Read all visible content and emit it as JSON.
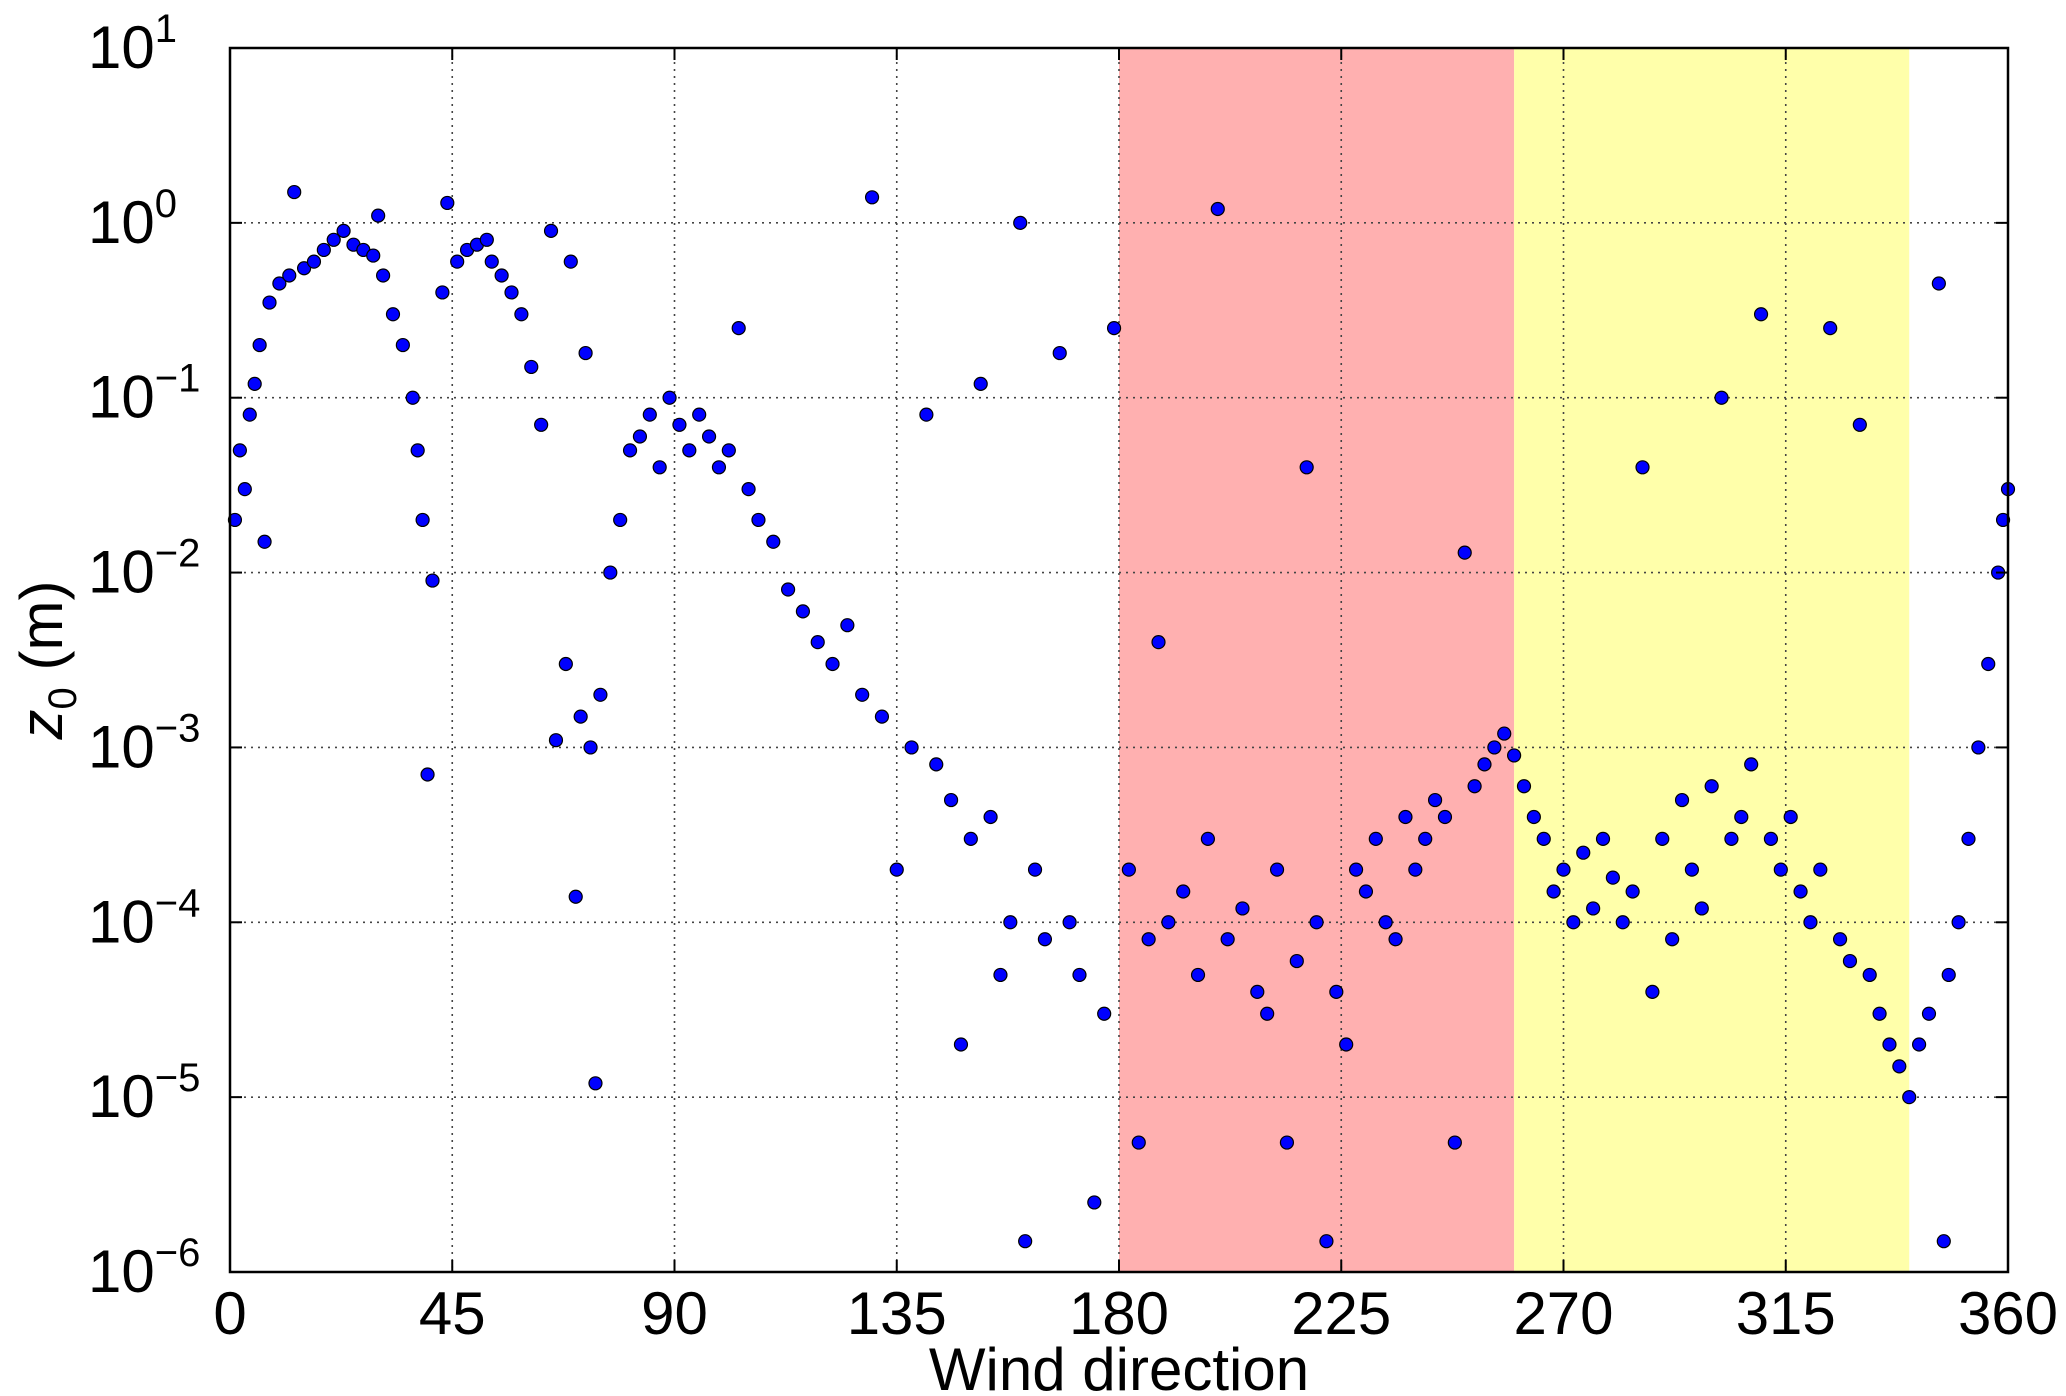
{
  "chart_data": {
    "type": "scatter",
    "xlabel": "Wind direction",
    "ylabel_main": "z",
    "ylabel_sub": "0",
    "ylabel_unit": " (m)",
    "xlim": [
      0,
      360
    ],
    "ylim": [
      1e-06,
      10
    ],
    "yscale": "log",
    "grid": true,
    "x_ticks": [
      "0",
      "45",
      "90",
      "135",
      "180",
      "225",
      "270",
      "315",
      "360"
    ],
    "x_tick_values": [
      0,
      45,
      90,
      135,
      180,
      225,
      270,
      315,
      360
    ],
    "y_ticks": [
      {
        "base": "10",
        "exp": "1",
        "value": 10
      },
      {
        "base": "10",
        "exp": "0",
        "value": 1
      },
      {
        "base": "10",
        "exp": "−1",
        "value": 0.1
      },
      {
        "base": "10",
        "exp": "−2",
        "value": 0.01
      },
      {
        "base": "10",
        "exp": "−3",
        "value": 0.001
      },
      {
        "base": "10",
        "exp": "−4",
        "value": 0.0001
      },
      {
        "base": "10",
        "exp": "−5",
        "value": 1e-05
      },
      {
        "base": "10",
        "exp": "−6",
        "value": 1e-06
      }
    ],
    "shaded_regions": [
      {
        "x_start": 180,
        "x_end": 260,
        "color": "#ffb0b0"
      },
      {
        "x_start": 260,
        "x_end": 340,
        "color": "#ffffaa"
      }
    ],
    "marker_color": "#0000ff",
    "series": [
      {
        "points": [
          [
            1,
            0.02
          ],
          [
            2,
            0.05
          ],
          [
            3,
            0.03
          ],
          [
            4,
            0.08
          ],
          [
            5,
            0.12
          ],
          [
            6,
            0.2
          ],
          [
            7,
            0.015
          ],
          [
            8,
            0.35
          ],
          [
            10,
            0.45
          ],
          [
            12,
            0.5
          ],
          [
            13,
            1.5
          ],
          [
            15,
            0.55
          ],
          [
            17,
            0.6
          ],
          [
            19,
            0.7
          ],
          [
            21,
            0.8
          ],
          [
            23,
            0.9
          ],
          [
            25,
            0.75
          ],
          [
            27,
            0.7
          ],
          [
            29,
            0.65
          ],
          [
            30,
            1.1
          ],
          [
            31,
            0.5
          ],
          [
            33,
            0.3
          ],
          [
            35,
            0.2
          ],
          [
            37,
            0.1
          ],
          [
            38,
            0.05
          ],
          [
            39,
            0.02
          ],
          [
            40,
            0.0007
          ],
          [
            41,
            0.009
          ],
          [
            43,
            0.4
          ],
          [
            44,
            1.3
          ],
          [
            46,
            0.6
          ],
          [
            48,
            0.7
          ],
          [
            50,
            0.75
          ],
          [
            52,
            0.8
          ],
          [
            53,
            0.6
          ],
          [
            55,
            0.5
          ],
          [
            57,
            0.4
          ],
          [
            59,
            0.3
          ],
          [
            61,
            0.15
          ],
          [
            63,
            0.07
          ],
          [
            65,
            0.9
          ],
          [
            66,
            0.0011
          ],
          [
            68,
            0.003
          ],
          [
            69,
            0.6
          ],
          [
            70,
            0.00014
          ],
          [
            71,
            0.0015
          ],
          [
            72,
            0.18
          ],
          [
            73,
            0.001
          ],
          [
            74,
            1.2e-05
          ],
          [
            75,
            0.002
          ],
          [
            77,
            0.01
          ],
          [
            79,
            0.02
          ],
          [
            81,
            0.05
          ],
          [
            83,
            0.06
          ],
          [
            85,
            0.08
          ],
          [
            87,
            0.04
          ],
          [
            89,
            0.1
          ],
          [
            91,
            0.07
          ],
          [
            93,
            0.05
          ],
          [
            95,
            0.08
          ],
          [
            97,
            0.06
          ],
          [
            99,
            0.04
          ],
          [
            101,
            0.05
          ],
          [
            103,
            0.25
          ],
          [
            105,
            0.03
          ],
          [
            107,
            0.02
          ],
          [
            110,
            0.015
          ],
          [
            113,
            0.008
          ],
          [
            116,
            0.006
          ],
          [
            119,
            0.004
          ],
          [
            122,
            0.003
          ],
          [
            125,
            0.005
          ],
          [
            128,
            0.002
          ],
          [
            130,
            1.4
          ],
          [
            132,
            0.0015
          ],
          [
            135,
            0.0002
          ],
          [
            138,
            0.001
          ],
          [
            141,
            0.08
          ],
          [
            143,
            0.0008
          ],
          [
            146,
            0.0005
          ],
          [
            148,
            2e-05
          ],
          [
            150,
            0.0003
          ],
          [
            152,
            0.12
          ],
          [
            154,
            0.0004
          ],
          [
            156,
            5e-05
          ],
          [
            158,
            0.0001
          ],
          [
            160,
            1.0
          ],
          [
            161,
            1.5e-06
          ],
          [
            163,
            0.0002
          ],
          [
            165,
            8e-05
          ],
          [
            168,
            0.18
          ],
          [
            170,
            0.0001
          ],
          [
            172,
            5e-05
          ],
          [
            175,
            2.5e-06
          ],
          [
            177,
            3e-05
          ],
          [
            179,
            0.25
          ],
          [
            182,
            0.0002
          ],
          [
            184,
            5.5e-06
          ],
          [
            186,
            8e-05
          ],
          [
            188,
            0.004
          ],
          [
            190,
            0.0001
          ],
          [
            193,
            0.00015
          ],
          [
            196,
            5e-05
          ],
          [
            198,
            0.0003
          ],
          [
            200,
            1.2
          ],
          [
            202,
            8e-05
          ],
          [
            205,
            0.00012
          ],
          [
            208,
            4e-05
          ],
          [
            210,
            3e-05
          ],
          [
            212,
            0.0002
          ],
          [
            214,
            5.5e-06
          ],
          [
            216,
            6e-05
          ],
          [
            218,
            0.04
          ],
          [
            220,
            0.0001
          ],
          [
            222,
            1.5e-06
          ],
          [
            224,
            4e-05
          ],
          [
            226,
            2e-05
          ],
          [
            228,
            0.0002
          ],
          [
            230,
            0.00015
          ],
          [
            232,
            0.0003
          ],
          [
            234,
            0.0001
          ],
          [
            236,
            8e-05
          ],
          [
            238,
            0.0004
          ],
          [
            240,
            0.0002
          ],
          [
            242,
            0.0003
          ],
          [
            244,
            0.0005
          ],
          [
            246,
            0.0004
          ],
          [
            248,
            5.5e-06
          ],
          [
            250,
            0.013
          ],
          [
            252,
            0.0006
          ],
          [
            254,
            0.0008
          ],
          [
            256,
            0.001
          ],
          [
            258,
            0.0012
          ],
          [
            260,
            0.0009
          ],
          [
            262,
            0.0006
          ],
          [
            264,
            0.0004
          ],
          [
            266,
            0.0003
          ],
          [
            268,
            0.00015
          ],
          [
            270,
            0.0002
          ],
          [
            272,
            0.0001
          ],
          [
            274,
            0.00025
          ],
          [
            276,
            0.00012
          ],
          [
            278,
            0.0003
          ],
          [
            280,
            0.00018
          ],
          [
            282,
            0.0001
          ],
          [
            284,
            0.00015
          ],
          [
            286,
            0.04
          ],
          [
            288,
            4e-05
          ],
          [
            290,
            0.0003
          ],
          [
            292,
            8e-05
          ],
          [
            294,
            0.0005
          ],
          [
            296,
            0.0002
          ],
          [
            298,
            0.00012
          ],
          [
            300,
            0.0006
          ],
          [
            302,
            0.1
          ],
          [
            304,
            0.0003
          ],
          [
            306,
            0.0004
          ],
          [
            308,
            0.0008
          ],
          [
            310,
            0.3
          ],
          [
            312,
            0.0003
          ],
          [
            314,
            0.0002
          ],
          [
            316,
            0.0004
          ],
          [
            318,
            0.00015
          ],
          [
            320,
            0.0001
          ],
          [
            322,
            0.0002
          ],
          [
            324,
            0.25
          ],
          [
            326,
            8e-05
          ],
          [
            328,
            6e-05
          ],
          [
            330,
            0.07
          ],
          [
            332,
            5e-05
          ],
          [
            334,
            3e-05
          ],
          [
            336,
            2e-05
          ],
          [
            338,
            1.5e-05
          ],
          [
            340,
            1e-05
          ],
          [
            342,
            2e-05
          ],
          [
            344,
            3e-05
          ],
          [
            346,
            0.45
          ],
          [
            347,
            1.5e-06
          ],
          [
            348,
            5e-05
          ],
          [
            350,
            0.0001
          ],
          [
            352,
            0.0003
          ],
          [
            354,
            0.001
          ],
          [
            356,
            0.003
          ],
          [
            358,
            0.01
          ],
          [
            359,
            0.02
          ],
          [
            360,
            0.03
          ]
        ]
      }
    ]
  }
}
